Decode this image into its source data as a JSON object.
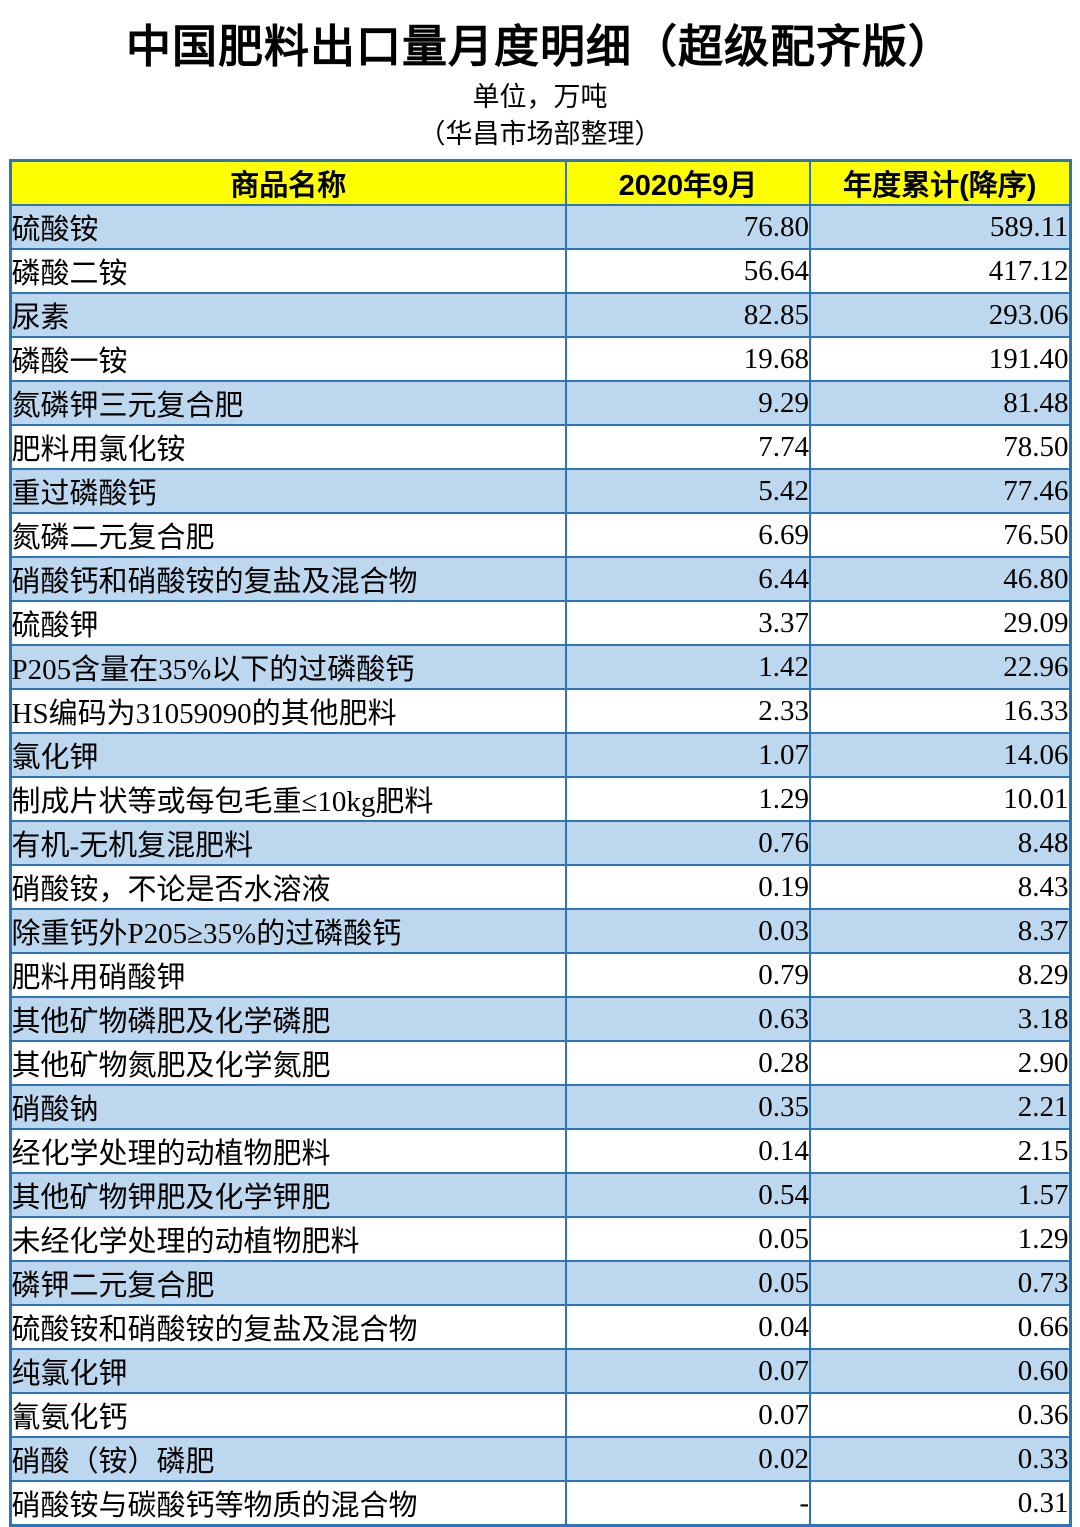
{
  "page": {
    "title": "中国肥料出口量月度明细（超级配齐版）",
    "unit_label": "单位，万吨",
    "source_label": "（华昌市场部整理）"
  },
  "colors": {
    "header_bg": "#FFFF00",
    "alt_row_bg": "#BDD7EE",
    "border": "#2E75B6"
  },
  "table": {
    "columns": [
      "商品名称",
      "2020年9月",
      "年度累计(降序)"
    ],
    "rows": [
      [
        "硫酸铵",
        "76.80",
        "589.11"
      ],
      [
        "磷酸二铵",
        "56.64",
        "417.12"
      ],
      [
        "尿素",
        "82.85",
        "293.06"
      ],
      [
        "磷酸一铵",
        "19.68",
        "191.40"
      ],
      [
        "氮磷钾三元复合肥",
        "9.29",
        "81.48"
      ],
      [
        "肥料用氯化铵",
        "7.74",
        "78.50"
      ],
      [
        "重过磷酸钙",
        "5.42",
        "77.46"
      ],
      [
        "氮磷二元复合肥",
        "6.69",
        "76.50"
      ],
      [
        "硝酸钙和硝酸铵的复盐及混合物",
        "6.44",
        "46.80"
      ],
      [
        "硫酸钾",
        "3.37",
        "29.09"
      ],
      [
        "P205含量在35%以下的过磷酸钙",
        "1.42",
        "22.96"
      ],
      [
        "HS编码为31059090的其他肥料",
        "2.33",
        "16.33"
      ],
      [
        "氯化钾",
        "1.07",
        "14.06"
      ],
      [
        "制成片状等或每包毛重≤10kg肥料",
        "1.29",
        "10.01"
      ],
      [
        "有机-无机复混肥料",
        "0.76",
        "8.48"
      ],
      [
        "硝酸铵，不论是否水溶液",
        "0.19",
        "8.43"
      ],
      [
        "除重钙外P205≥35%的过磷酸钙",
        "0.03",
        "8.37"
      ],
      [
        "肥料用硝酸钾",
        "0.79",
        "8.29"
      ],
      [
        "其他矿物磷肥及化学磷肥",
        "0.63",
        "3.18"
      ],
      [
        "其他矿物氮肥及化学氮肥",
        "0.28",
        "2.90"
      ],
      [
        "硝酸钠",
        "0.35",
        "2.21"
      ],
      [
        "经化学处理的动植物肥料",
        "0.14",
        "2.15"
      ],
      [
        "其他矿物钾肥及化学钾肥",
        "0.54",
        "1.57"
      ],
      [
        "未经化学处理的动植物肥料",
        "0.05",
        "1.29"
      ],
      [
        "磷钾二元复合肥",
        "0.05",
        "0.73"
      ],
      [
        "硫酸铵和硝酸铵的复盐及混合物",
        "0.04",
        "0.66"
      ],
      [
        "纯氯化钾",
        "0.07",
        "0.60"
      ],
      [
        "氰氨化钙",
        "0.07",
        "0.36"
      ],
      [
        "硝酸（铵）磷肥",
        "0.02",
        "0.33"
      ],
      [
        "硝酸铵与碳酸钙等物质的混合物",
        "-",
        "0.31"
      ]
    ]
  }
}
